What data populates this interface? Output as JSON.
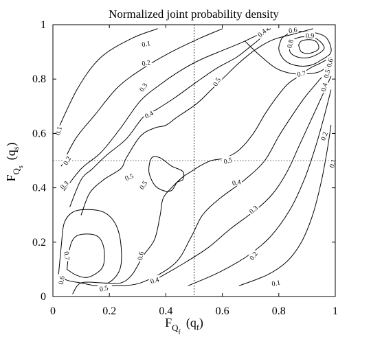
{
  "chart_data": {
    "type": "contour",
    "title": "Normalized joint probability density",
    "xlabel": {
      "main": "F",
      "sub1": "Q",
      "sub2": "f",
      "paren_open": "(q",
      "paren_sub": "f",
      "paren_close": ")"
    },
    "ylabel": {
      "main": "F",
      "sub1": "Q",
      "sub2": "s",
      "paren_open": "(q",
      "paren_sub": "s",
      "paren_close": ")"
    },
    "xlim": [
      0,
      1
    ],
    "ylim": [
      0,
      1
    ],
    "xticks": [
      {
        "v": 0,
        "label": "0"
      },
      {
        "v": 0.2,
        "label": "0.2"
      },
      {
        "v": 0.4,
        "label": "0.4"
      },
      {
        "v": 0.6,
        "label": "0.6"
      },
      {
        "v": 0.8,
        "label": "0.8"
      },
      {
        "v": 1,
        "label": "1"
      }
    ],
    "yticks": [
      {
        "v": 0,
        "label": "0"
      },
      {
        "v": 0.2,
        "label": "0.2"
      },
      {
        "v": 0.4,
        "label": "0.4"
      },
      {
        "v": 0.6,
        "label": "0.6"
      },
      {
        "v": 0.8,
        "label": "0.8"
      },
      {
        "v": 1,
        "label": "1"
      }
    ],
    "reference_lines": [
      {
        "orientation": "vertical",
        "value": 0.5
      },
      {
        "orientation": "horizontal",
        "value": 0.5
      }
    ],
    "contours": [
      {
        "level": 0.1,
        "points": [
          [
            0.02,
            0.62
          ],
          [
            0.09,
            0.77
          ],
          [
            0.17,
            0.88
          ],
          [
            0.28,
            0.95
          ],
          [
            0.37,
            0.985
          ]
        ]
      },
      {
        "level": 0.1,
        "points": [
          [
            0.66,
            0.04
          ],
          [
            0.76,
            0.08
          ],
          [
            0.83,
            0.13
          ],
          [
            0.88,
            0.2
          ],
          [
            0.92,
            0.3
          ],
          [
            0.95,
            0.42
          ],
          [
            0.97,
            0.53
          ],
          [
            0.985,
            0.63
          ]
        ]
      },
      {
        "level": 0.2,
        "points": [
          [
            0.03,
            0.48
          ],
          [
            0.08,
            0.58
          ],
          [
            0.15,
            0.67
          ],
          [
            0.23,
            0.77
          ],
          [
            0.32,
            0.84
          ],
          [
            0.42,
            0.9
          ],
          [
            0.52,
            0.95
          ],
          [
            0.6,
            0.985
          ]
        ]
      },
      {
        "level": 0.2,
        "points": [
          [
            0.48,
            0.04
          ],
          [
            0.59,
            0.09
          ],
          [
            0.69,
            0.15
          ],
          [
            0.77,
            0.22
          ],
          [
            0.84,
            0.32
          ],
          [
            0.89,
            0.43
          ],
          [
            0.93,
            0.55
          ],
          [
            0.96,
            0.66
          ],
          [
            0.985,
            0.76
          ]
        ]
      },
      {
        "level": 0.3,
        "points": [
          [
            0.04,
            0.39
          ],
          [
            0.1,
            0.47
          ],
          [
            0.17,
            0.53
          ],
          [
            0.24,
            0.62
          ],
          [
            0.31,
            0.72
          ],
          [
            0.38,
            0.78
          ],
          [
            0.45,
            0.83
          ],
          [
            0.52,
            0.87
          ],
          [
            0.6,
            0.905
          ],
          [
            0.67,
            0.935
          ],
          [
            0.73,
            0.965
          ],
          [
            0.77,
            0.985
          ]
        ]
      },
      {
        "level": 0.3,
        "points": [
          [
            0.36,
            0.06
          ],
          [
            0.46,
            0.12
          ],
          [
            0.55,
            0.18
          ],
          [
            0.63,
            0.25
          ],
          [
            0.72,
            0.32
          ],
          [
            0.78,
            0.38
          ],
          [
            0.83,
            0.46
          ],
          [
            0.87,
            0.55
          ],
          [
            0.91,
            0.64
          ],
          [
            0.95,
            0.73
          ],
          [
            0.985,
            0.81
          ]
        ]
      },
      {
        "level": 0.4,
        "points": [
          [
            0.06,
            0.33
          ],
          [
            0.1,
            0.43
          ],
          [
            0.14,
            0.47
          ],
          [
            0.19,
            0.52
          ],
          [
            0.26,
            0.58
          ],
          [
            0.32,
            0.66
          ],
          [
            0.37,
            0.69
          ],
          [
            0.43,
            0.73
          ],
          [
            0.51,
            0.79
          ],
          [
            0.58,
            0.84
          ],
          [
            0.65,
            0.88
          ],
          [
            0.7,
            0.92
          ],
          [
            0.74,
            0.955
          ],
          [
            0.76,
            0.985
          ]
        ]
      },
      {
        "level": 0.4,
        "points": [
          [
            0.21,
            0.04
          ],
          [
            0.31,
            0.05
          ],
          [
            0.43,
            0.12
          ],
          [
            0.49,
            0.22
          ],
          [
            0.53,
            0.3
          ],
          [
            0.59,
            0.36
          ],
          [
            0.68,
            0.43
          ],
          [
            0.75,
            0.5
          ],
          [
            0.8,
            0.59
          ],
          [
            0.85,
            0.67
          ],
          [
            0.89,
            0.73
          ],
          [
            0.93,
            0.78
          ],
          [
            0.97,
            0.83
          ],
          [
            0.985,
            0.86
          ]
        ]
      },
      {
        "level": 0.5,
        "points": [
          [
            0.1,
            0.3
          ],
          [
            0.13,
            0.38
          ],
          [
            0.18,
            0.43
          ],
          [
            0.24,
            0.47
          ],
          [
            0.26,
            0.51
          ],
          [
            0.31,
            0.59
          ],
          [
            0.36,
            0.62
          ],
          [
            0.4,
            0.63
          ],
          [
            0.44,
            0.66
          ],
          [
            0.51,
            0.71
          ],
          [
            0.56,
            0.76
          ],
          [
            0.61,
            0.81
          ],
          [
            0.66,
            0.86
          ],
          [
            0.72,
            0.91
          ],
          [
            0.78,
            0.945
          ],
          [
            0.85,
            0.965
          ],
          [
            0.92,
            0.985
          ]
        ]
      },
      {
        "level": 0.5,
        "points": [
          [
            0.07,
            0.01
          ],
          [
            0.1,
            0.05
          ],
          [
            0.18,
            0.05
          ],
          [
            0.24,
            0.05
          ],
          [
            0.28,
            0.08
          ],
          [
            0.32,
            0.15
          ],
          [
            0.36,
            0.21
          ],
          [
            0.38,
            0.3
          ],
          [
            0.39,
            0.36
          ],
          [
            0.42,
            0.4
          ],
          [
            0.46,
            0.44
          ],
          [
            0.49,
            0.46
          ],
          [
            0.52,
            0.48
          ],
          [
            0.56,
            0.5
          ],
          [
            0.61,
            0.51
          ],
          [
            0.66,
            0.54
          ],
          [
            0.71,
            0.6
          ],
          [
            0.75,
            0.67
          ],
          [
            0.79,
            0.73
          ],
          [
            0.83,
            0.78
          ],
          [
            0.87,
            0.81
          ],
          [
            0.91,
            0.84
          ],
          [
            0.95,
            0.86
          ],
          [
            0.985,
            0.88
          ]
        ]
      },
      {
        "level": 0.5,
        "closed": true,
        "points": [
          [
            0.34,
            0.46
          ],
          [
            0.36,
            0.41
          ],
          [
            0.39,
            0.39
          ],
          [
            0.42,
            0.39
          ],
          [
            0.44,
            0.42
          ],
          [
            0.46,
            0.43
          ],
          [
            0.46,
            0.46
          ],
          [
            0.42,
            0.48
          ],
          [
            0.38,
            0.51
          ],
          [
            0.35,
            0.51
          ]
        ]
      },
      {
        "level": 0.6,
        "points": [
          [
            0.02,
            0.08
          ],
          [
            0.03,
            0.19
          ],
          [
            0.04,
            0.27
          ],
          [
            0.07,
            0.31
          ],
          [
            0.12,
            0.32
          ],
          [
            0.18,
            0.31
          ],
          [
            0.22,
            0.27
          ],
          [
            0.24,
            0.2
          ],
          [
            0.24,
            0.11
          ],
          [
            0.21,
            0.06
          ],
          [
            0.16,
            0.04
          ],
          [
            0.1,
            0.05
          ],
          [
            0.05,
            0.06
          ],
          [
            0.02,
            0.08
          ]
        ]
      },
      {
        "level": 0.6,
        "points": [
          [
            0.68,
            0.94
          ],
          [
            0.73,
            0.89
          ],
          [
            0.79,
            0.84
          ],
          [
            0.85,
            0.82
          ],
          [
            0.91,
            0.82
          ],
          [
            0.95,
            0.83
          ],
          [
            0.985,
            0.86
          ]
        ]
      },
      {
        "level": 0.7,
        "points": [
          [
            0.05,
            0.1
          ],
          [
            0.06,
            0.18
          ],
          [
            0.08,
            0.22
          ],
          [
            0.12,
            0.23
          ],
          [
            0.16,
            0.22
          ],
          [
            0.18,
            0.18
          ],
          [
            0.18,
            0.12
          ],
          [
            0.16,
            0.09
          ],
          [
            0.12,
            0.07
          ],
          [
            0.08,
            0.08
          ],
          [
            0.05,
            0.1
          ]
        ]
      },
      {
        "level": 0.7,
        "points": [
          [
            0.81,
            0.95
          ],
          [
            0.8,
            0.91
          ],
          [
            0.82,
            0.87
          ],
          [
            0.86,
            0.85
          ],
          [
            0.91,
            0.85
          ],
          [
            0.95,
            0.87
          ],
          [
            0.985,
            0.9
          ],
          [
            0.97,
            0.95
          ],
          [
            0.93,
            0.97
          ],
          [
            0.88,
            0.975
          ],
          [
            0.84,
            0.97
          ],
          [
            0.81,
            0.95
          ]
        ]
      },
      {
        "level": 0.8,
        "points": [
          [
            0.84,
            0.94
          ],
          [
            0.84,
            0.9
          ],
          [
            0.87,
            0.88
          ],
          [
            0.91,
            0.88
          ],
          [
            0.95,
            0.9
          ],
          [
            0.96,
            0.92
          ],
          [
            0.93,
            0.95
          ],
          [
            0.88,
            0.955
          ],
          [
            0.84,
            0.94
          ]
        ]
      },
      {
        "level": 0.9,
        "points": [
          [
            0.87,
            0.925
          ],
          [
            0.88,
            0.9
          ],
          [
            0.91,
            0.895
          ],
          [
            0.94,
            0.91
          ],
          [
            0.935,
            0.935
          ],
          [
            0.91,
            0.945
          ],
          [
            0.88,
            0.94
          ],
          [
            0.87,
            0.925
          ]
        ]
      }
    ],
    "contour_labels": [
      {
        "text": "0.1",
        "x": 0.33,
        "y": 0.93,
        "angle": -10
      },
      {
        "text": "0.2",
        "x": 0.33,
        "y": 0.86,
        "angle": -12
      },
      {
        "text": "0.3",
        "x": 0.32,
        "y": 0.77,
        "angle": -55
      },
      {
        "text": "0.4",
        "x": 0.34,
        "y": 0.67,
        "angle": -28
      },
      {
        "text": "0.5",
        "x": 0.58,
        "y": 0.79,
        "angle": -60
      },
      {
        "text": "0.4",
        "x": 0.74,
        "y": 0.97,
        "angle": -40
      },
      {
        "text": "0.6",
        "x": 0.85,
        "y": 0.98,
        "angle": -10
      },
      {
        "text": "0.9",
        "x": 0.91,
        "y": 0.96,
        "angle": 0
      },
      {
        "text": "0.8",
        "x": 0.84,
        "y": 0.93,
        "angle": -75
      },
      {
        "text": "0.7",
        "x": 0.88,
        "y": 0.82,
        "angle": -10
      },
      {
        "text": "0.6",
        "x": 0.98,
        "y": 0.86,
        "angle": -75
      },
      {
        "text": "0.5",
        "x": 0.97,
        "y": 0.82,
        "angle": -75
      },
      {
        "text": "0.4",
        "x": 0.96,
        "y": 0.77,
        "angle": -75
      },
      {
        "text": "0.1",
        "x": 0.02,
        "y": 0.61,
        "angle": -75
      },
      {
        "text": "0.2",
        "x": 0.05,
        "y": 0.5,
        "angle": -60
      },
      {
        "text": "0.3",
        "x": 0.04,
        "y": 0.41,
        "angle": -45
      },
      {
        "text": "0.5",
        "x": 0.27,
        "y": 0.44,
        "angle": -20
      },
      {
        "text": "0.5",
        "x": 0.32,
        "y": 0.41,
        "angle": -60
      },
      {
        "text": "0.5",
        "x": 0.62,
        "y": 0.5,
        "angle": -15
      },
      {
        "text": "0.4",
        "x": 0.65,
        "y": 0.42,
        "angle": -10
      },
      {
        "text": "0.3",
        "x": 0.71,
        "y": 0.32,
        "angle": -40
      },
      {
        "text": "0.2",
        "x": 0.71,
        "y": 0.15,
        "angle": -55
      },
      {
        "text": "0.1",
        "x": 0.79,
        "y": 0.05,
        "angle": -10
      },
      {
        "text": "0.2",
        "x": 0.96,
        "y": 0.59,
        "angle": -70
      },
      {
        "text": "0.1",
        "x": 0.99,
        "y": 0.49,
        "angle": -75
      },
      {
        "text": "0.6",
        "x": 0.31,
        "y": 0.15,
        "angle": -80
      },
      {
        "text": "0.7",
        "x": 0.05,
        "y": 0.15,
        "angle": 85
      },
      {
        "text": "0.6",
        "x": 0.03,
        "y": 0.06,
        "angle": -80
      },
      {
        "text": "0.5",
        "x": 0.18,
        "y": 0.03,
        "angle": -10
      },
      {
        "text": "0.4",
        "x": 0.36,
        "y": 0.06,
        "angle": -15
      }
    ]
  }
}
